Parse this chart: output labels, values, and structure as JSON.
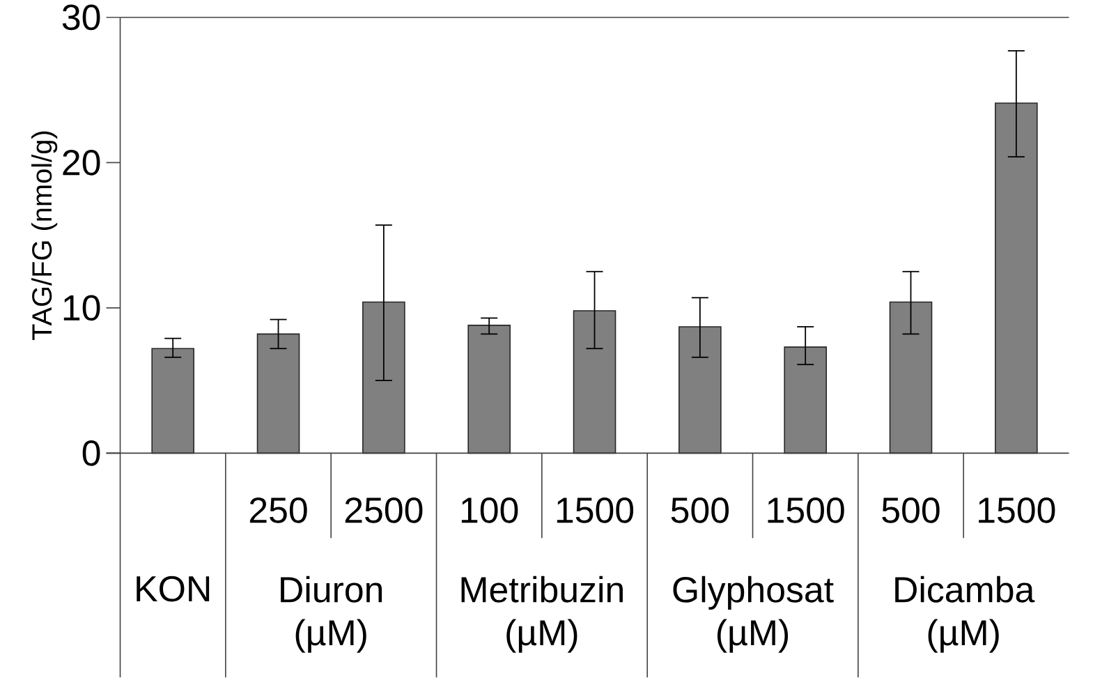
{
  "chart_data": {
    "type": "bar",
    "ylabel": "TAG/FG (nmol/g)",
    "categories": [
      null,
      "250",
      "2500",
      "100",
      "1500",
      "500",
      "1500",
      "500",
      "1500"
    ],
    "values": [
      7.2,
      8.2,
      10.4,
      8.8,
      9.8,
      8.7,
      7.3,
      10.4,
      24.1
    ],
    "errors": [
      [
        6.6,
        7.9
      ],
      [
        7.2,
        9.2
      ],
      [
        5.0,
        15.7
      ],
      [
        8.2,
        9.3
      ],
      [
        7.2,
        12.5
      ],
      [
        6.6,
        10.7
      ],
      [
        6.1,
        8.7
      ],
      [
        8.2,
        12.5
      ],
      [
        20.4,
        27.7
      ]
    ],
    "color": "#808080",
    "ylim": [
      0,
      30
    ],
    "yticks": [
      0,
      10,
      20,
      30
    ],
    "annotations": [
      "KON",
      "Diuron (µM)",
      "Metribuzin (µM)",
      "Glyphosat (µM)",
      "Dicamba (µM)"
    ]
  }
}
